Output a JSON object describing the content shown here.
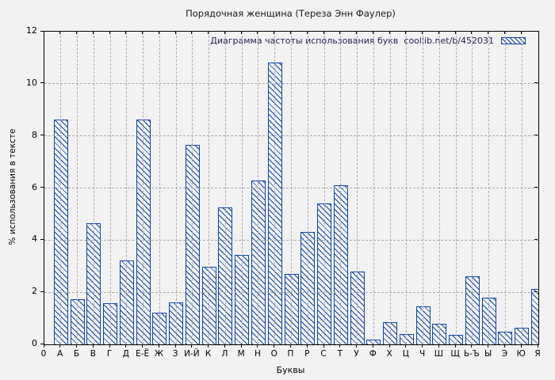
{
  "window": {
    "title": "Порядочная женщина (Тереза Энн Фаулер)"
  },
  "colors": {
    "background": "#f2f2f2",
    "bar": "#0f44a8",
    "grid": "#a9a9a9",
    "axis": "#000000",
    "legend_text": "#222255"
  },
  "chart_data": {
    "type": "bar",
    "title": "Порядочная женщина (Тереза Энн Фаулер)",
    "legend": "Диаграмма частоты использования букв  coollib.net/b/452031",
    "legend_position": "top-right",
    "xlabel": "Буквы",
    "ylabel": "% использования в тексте",
    "x_origin_label": "0",
    "ylim": [
      0,
      12
    ],
    "y_ticks": [
      0,
      2,
      4,
      6,
      8,
      10,
      12
    ],
    "grid": true,
    "hatch": "diagonal-backslash",
    "categories": [
      "А",
      "Б",
      "В",
      "Г",
      "Д",
      "Е-Ё",
      "Ж",
      "З",
      "И-Й",
      "К",
      "Л",
      "М",
      "Н",
      "О",
      "П",
      "Р",
      "С",
      "Т",
      "У",
      "Ф",
      "Х",
      "Ц",
      "Ч",
      "Ш",
      "Щ",
      "Ь-Ъ",
      "Ы",
      "Э",
      "Ю",
      "Я"
    ],
    "values": [
      8.61,
      1.7,
      4.61,
      1.55,
      3.18,
      8.61,
      1.18,
      1.58,
      7.64,
      2.94,
      5.24,
      3.39,
      6.27,
      10.79,
      2.67,
      4.27,
      5.39,
      6.09,
      2.76,
      0.15,
      0.82,
      0.36,
      1.42,
      0.76,
      0.33,
      2.58,
      1.76,
      0.45,
      0.61,
      2.09
    ]
  }
}
